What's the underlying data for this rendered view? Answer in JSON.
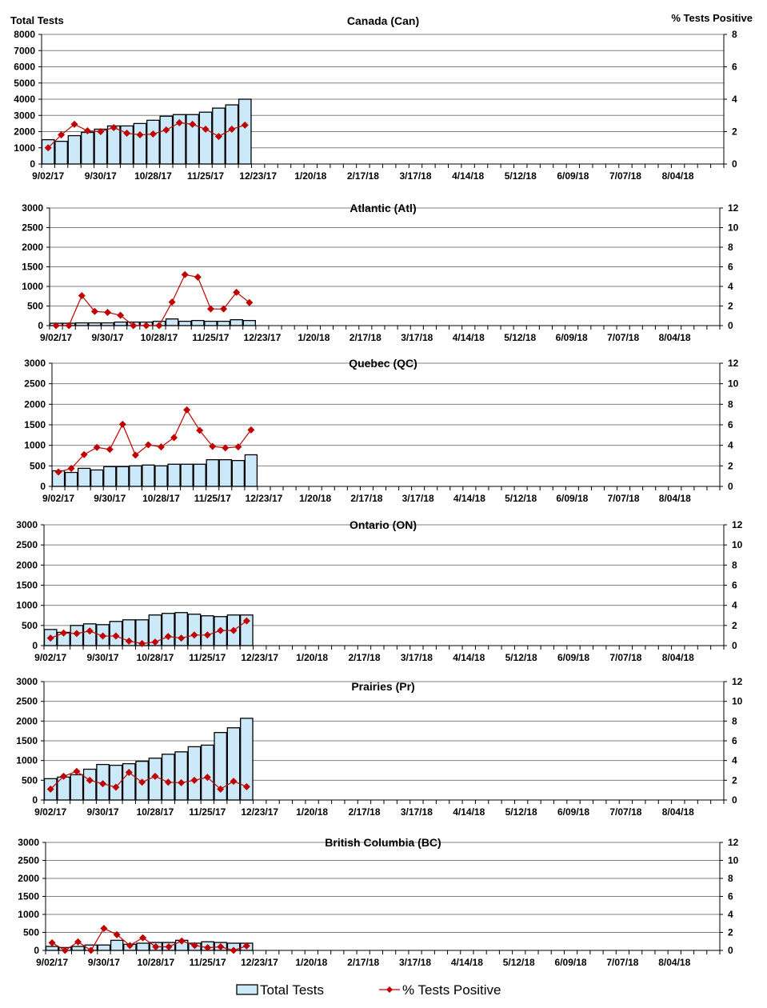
{
  "left_axis_title": "Total Tests",
  "right_axis_title": "% Tests Positive",
  "legend": {
    "bars": "Total Tests",
    "line": "% Tests Positive"
  },
  "colors": {
    "bar_fill": "#CCE9FA",
    "bar_stroke": "#000000",
    "line": "#C00000",
    "grid": "#808080"
  },
  "x_tick_labels": [
    "9/02/17",
    "9/30/17",
    "10/28/17",
    "11/25/17",
    "12/23/17",
    "1/20/18",
    "2/17/18",
    "3/17/18",
    "4/14/18",
    "5/12/18",
    "6/09/18",
    "7/07/18",
    "8/04/18"
  ],
  "chart_data": [
    {
      "type": "bar+line",
      "title": "Canada (Can)",
      "weeks_total": 52,
      "ylim": [
        0,
        8000
      ],
      "y_step": 1000,
      "y2lim": [
        0,
        8
      ],
      "y2_step": 2,
      "grid": true,
      "series": [
        {
          "name": "Total Tests",
          "values": [
            1500,
            1400,
            1750,
            1950,
            2150,
            2350,
            2350,
            2500,
            2700,
            2950,
            3050,
            3050,
            3200,
            3450,
            3650,
            4000
          ]
        },
        {
          "name": "% Tests Positive",
          "values": [
            1.0,
            1.8,
            2.45,
            2.05,
            2.0,
            2.25,
            1.9,
            1.8,
            1.85,
            2.1,
            2.55,
            2.45,
            2.15,
            1.7,
            2.15,
            2.4
          ]
        }
      ]
    },
    {
      "type": "bar+line",
      "title": "Atlantic (Atl)",
      "weeks_total": 52,
      "ylim": [
        0,
        3000
      ],
      "y_step": 500,
      "y2lim": [
        0,
        12
      ],
      "y2_step": 2,
      "grid": true,
      "series": [
        {
          "name": "Total Tests",
          "values": [
            60,
            60,
            70,
            70,
            70,
            90,
            90,
            90,
            110,
            170,
            110,
            130,
            110,
            110,
            150,
            130
          ]
        },
        {
          "name": "% Tests Positive",
          "values": [
            0,
            0,
            3.05,
            1.45,
            1.35,
            1.05,
            0,
            0,
            0,
            2.4,
            5.2,
            4.95,
            1.7,
            1.7,
            3.4,
            2.35
          ]
        }
      ]
    },
    {
      "type": "bar+line",
      "title": "Quebec (QC)",
      "weeks_total": 52,
      "ylim": [
        0,
        3000
      ],
      "y_step": 500,
      "y2lim": [
        0,
        12
      ],
      "y2_step": 2,
      "grid": true,
      "series": [
        {
          "name": "Total Tests",
          "values": [
            380,
            340,
            440,
            400,
            480,
            480,
            500,
            520,
            500,
            540,
            540,
            540,
            650,
            650,
            630,
            770
          ]
        },
        {
          "name": "% Tests Positive",
          "values": [
            1.4,
            1.75,
            3.1,
            3.8,
            3.6,
            6.05,
            3.05,
            4.05,
            3.85,
            4.75,
            7.45,
            5.45,
            3.9,
            3.75,
            3.85,
            5.5
          ]
        }
      ]
    },
    {
      "type": "bar+line",
      "title": "Ontario (ON)",
      "weeks_total": 52,
      "ylim": [
        0,
        3000
      ],
      "y_step": 500,
      "y2lim": [
        0,
        12
      ],
      "y2_step": 2,
      "grid": true,
      "series": [
        {
          "name": "Total Tests",
          "values": [
            400,
            330,
            500,
            540,
            520,
            600,
            640,
            640,
            760,
            800,
            820,
            780,
            740,
            720,
            760,
            760
          ]
        },
        {
          "name": "% Tests Positive",
          "values": [
            0.75,
            1.25,
            1.2,
            1.45,
            0.95,
            0.95,
            0.45,
            0.2,
            0.35,
            0.9,
            0.75,
            1.05,
            1.05,
            1.5,
            1.5,
            2.45
          ]
        }
      ]
    },
    {
      "type": "bar+line",
      "title": "Prairies (Pr)",
      "weeks_total": 52,
      "ylim": [
        0,
        3000
      ],
      "y_step": 500,
      "y2lim": [
        0,
        12
      ],
      "y2_step": 2,
      "grid": true,
      "series": [
        {
          "name": "Total Tests",
          "values": [
            540,
            580,
            640,
            780,
            900,
            880,
            920,
            980,
            1060,
            1160,
            1220,
            1350,
            1390,
            1710,
            1830,
            2070
          ]
        },
        {
          "name": "% Tests Positive",
          "values": [
            1.1,
            2.4,
            2.9,
            2.0,
            1.65,
            1.3,
            2.8,
            1.8,
            2.4,
            1.8,
            1.75,
            2.0,
            2.3,
            1.1,
            1.9,
            1.35
          ]
        }
      ]
    },
    {
      "type": "bar+line",
      "title": "British Columbia (BC)",
      "weeks_total": 52,
      "ylim": [
        0,
        3000
      ],
      "y_step": 500,
      "y2lim": [
        0,
        12
      ],
      "y2_step": 2,
      "grid": true,
      "series": [
        {
          "name": "Total Tests",
          "values": [
            110,
            80,
            110,
            150,
            150,
            280,
            170,
            200,
            220,
            220,
            280,
            200,
            240,
            220,
            200,
            200
          ]
        },
        {
          "name": "% Tests Positive",
          "values": [
            0.85,
            0,
            0.95,
            0,
            2.45,
            1.75,
            0.55,
            1.4,
            0.4,
            0.4,
            1.05,
            0.55,
            0.3,
            0.4,
            0,
            0.5
          ]
        }
      ]
    }
  ]
}
